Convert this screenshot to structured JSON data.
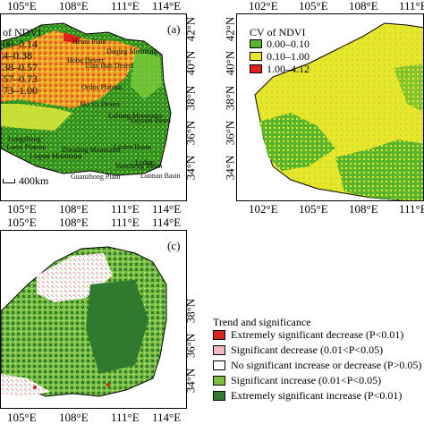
{
  "panel_a": {
    "label": "(a)",
    "top_ticks": [
      "105°E",
      "108°E",
      "111°E",
      "114°E"
    ],
    "bottom_ticks": [
      "105°E",
      "108°E",
      "111°E",
      "114°E"
    ],
    "right_ticks": [
      "42°N",
      "40°N",
      "38°N",
      "36°N",
      "34°N"
    ],
    "legend_title": "of NDVI",
    "legend_items": [
      "00–0.14",
      "4–0.38",
      "38–0.57",
      "57–0.73",
      "73–1.00"
    ],
    "scale_label": "400km",
    "places": [
      "Hetao Plain",
      "Daqing Mountain",
      "Hobq Desert",
      "Ulan Buh Desert",
      "Ordos Plateau",
      "Mu Us Desert",
      "Longzhong",
      "Loess Plateau",
      "Liupan Mountains",
      "Ziwuling Mountains",
      "Luliang Mountains",
      "Taiyuan Basin",
      "Yuncheng Basin",
      "Linfen Basin",
      "Lishan",
      "Guanzhong Plain",
      "Luonan Basin"
    ],
    "colors": [
      "#2e8b1f",
      "#7ccd3a",
      "#d8e63a",
      "#f0a02a",
      "#e8641c"
    ]
  },
  "panel_b": {
    "top_ticks": [
      "102°E",
      "105°E",
      "108°E",
      "111°E"
    ],
    "bottom_ticks": [
      "102°E",
      "105°E",
      "108°E",
      "111°E"
    ],
    "left_ticks": [
      "42°N",
      "40°N",
      "38°N",
      "36°N",
      "34°N"
    ],
    "legend_title": "CV of NDVI",
    "legend_items": [
      {
        "label": "0.00–0.10",
        "color": "#5ab52e"
      },
      {
        "label": "0.10–1.00",
        "color": "#e6e62a"
      },
      {
        "label": "1.00–4.12",
        "color": "#e0201a"
      }
    ]
  },
  "panel_c": {
    "label": "(c)",
    "top_ticks": [
      "105°E",
      "108°E",
      "111°E",
      "114°E"
    ],
    "bottom_ticks": [
      "105°E",
      "108°E",
      "111°E",
      "114°E"
    ],
    "right_ticks": [
      "38°N",
      "36°N",
      "34°N"
    ],
    "legend_title": "Trend and significance",
    "legend_items": [
      {
        "label": "Extremely significant decrease (P<0.01)",
        "color": "#d9231f"
      },
      {
        "label": "Significant decrease (0.01<P<0.05)",
        "color": "#f6b6c1"
      },
      {
        "label": "No significant increase or decrease (P>0.05)",
        "color": "#ffffff"
      },
      {
        "label": "Significant increase (0.01<P<0.05)",
        "color": "#7cc142"
      },
      {
        "label": "Extremely significant increase (P<0.01)",
        "color": "#2f7a2f"
      }
    ]
  }
}
